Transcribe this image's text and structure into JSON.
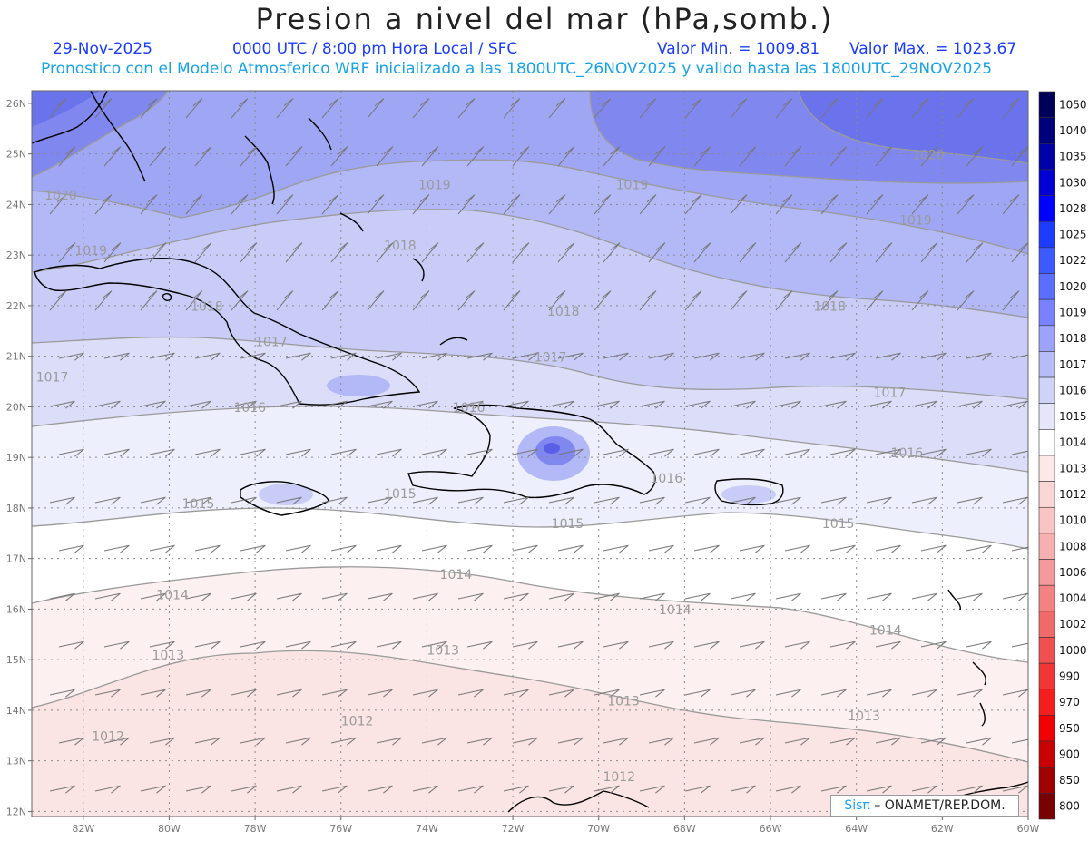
{
  "header": {
    "title": "Presion a nivel del mar (hPa,somb.)",
    "date": "29-Nov-2025",
    "time_info": "0000 UTC / 8:00 pm Hora Local / SFC",
    "min_label": "Valor Min. = 1009.81",
    "max_label": "Valor Max. = 1023.67",
    "forecast_info": "Pronostico con el Modelo Atmosferico WRF inicializado a las 1800UTC_26NOV2025 y valido hasta las  1800UTC_29NOV2025"
  },
  "map": {
    "lat_labels": [
      "26N",
      "25N",
      "24N",
      "23N",
      "22N",
      "21N",
      "20N",
      "19N",
      "18N",
      "17N",
      "16N",
      "15N",
      "14N",
      "13N",
      "12N"
    ],
    "lon_labels": [
      "82W",
      "80W",
      "78W",
      "76W",
      "74W",
      "72W",
      "70W",
      "68W",
      "66W",
      "64W",
      "62W",
      "60W"
    ],
    "isobar_labels": [
      {
        "text": "1020",
        "lon": -82.9,
        "lat": 24.1
      },
      {
        "text": "1020",
        "lon": -62.7,
        "lat": 24.9
      },
      {
        "text": "1019",
        "lon": -82.2,
        "lat": 23.0
      },
      {
        "text": "1019",
        "lon": -74.2,
        "lat": 24.3
      },
      {
        "text": "1019",
        "lon": -69.6,
        "lat": 24.3
      },
      {
        "text": "1019",
        "lon": -63.0,
        "lat": 23.6
      },
      {
        "text": "1018",
        "lon": -79.5,
        "lat": 21.9
      },
      {
        "text": "1018",
        "lon": -75.0,
        "lat": 23.1
      },
      {
        "text": "1018",
        "lon": -71.2,
        "lat": 21.8
      },
      {
        "text": "1018",
        "lon": -65.0,
        "lat": 21.9
      },
      {
        "text": "1017",
        "lon": -83.1,
        "lat": 20.5
      },
      {
        "text": "1017",
        "lon": -78.0,
        "lat": 21.2
      },
      {
        "text": "1017",
        "lon": -71.5,
        "lat": 20.9
      },
      {
        "text": "1017",
        "lon": -63.6,
        "lat": 20.2
      },
      {
        "text": "1016",
        "lon": -78.5,
        "lat": 19.9
      },
      {
        "text": "1016",
        "lon": -73.4,
        "lat": 19.9
      },
      {
        "text": "1016",
        "lon": -63.2,
        "lat": 19.0
      },
      {
        "text": "1016",
        "lon": -68.8,
        "lat": 18.5
      },
      {
        "text": "1015",
        "lon": -79.7,
        "lat": 18.0
      },
      {
        "text": "1015",
        "lon": -75.0,
        "lat": 18.2
      },
      {
        "text": "1015",
        "lon": -71.1,
        "lat": 17.6
      },
      {
        "text": "1015",
        "lon": -64.8,
        "lat": 17.6
      },
      {
        "text": "1014",
        "lon": -80.3,
        "lat": 16.2
      },
      {
        "text": "1014",
        "lon": -73.7,
        "lat": 16.6
      },
      {
        "text": "1014",
        "lon": -68.6,
        "lat": 15.9
      },
      {
        "text": "1014",
        "lon": -63.7,
        "lat": 15.5
      },
      {
        "text": "1013",
        "lon": -80.4,
        "lat": 15.0
      },
      {
        "text": "1013",
        "lon": -74.0,
        "lat": 15.1
      },
      {
        "text": "1013",
        "lon": -69.8,
        "lat": 14.1
      },
      {
        "text": "1013",
        "lon": -64.2,
        "lat": 13.8
      },
      {
        "text": "1012",
        "lon": -81.8,
        "lat": 13.4
      },
      {
        "text": "1012",
        "lon": -76.0,
        "lat": 13.7
      },
      {
        "text": "1012",
        "lon": -69.9,
        "lat": 12.6
      }
    ]
  },
  "legend": {
    "levels": [
      "1050",
      "1040",
      "1035",
      "1030",
      "1028",
      "1025",
      "1022",
      "1020",
      "1019",
      "1018",
      "1017",
      "1016",
      "1015",
      "1014",
      "1013",
      "1012",
      "1010",
      "1008",
      "1006",
      "1004",
      "1002",
      "1000",
      "990",
      "970",
      "950",
      "900",
      "850",
      "800"
    ],
    "colors": [
      "#00005a",
      "#00007a",
      "#0000a8",
      "#0000d2",
      "#0000ff",
      "#1e3cff",
      "#3c5aff",
      "#5a6eff",
      "#7882ff",
      "#9ba3fa",
      "#b7bcf8",
      "#d0d3f8",
      "#e5e6fa",
      "#ffffff",
      "#fde8e8",
      "#fbd6d6",
      "#f9c4c4",
      "#f7b0b0",
      "#f59a9a",
      "#f38282",
      "#f16a6a",
      "#f05050",
      "#f03636",
      "#f51e1e",
      "#f00000",
      "#c80000",
      "#a00000",
      "#780000"
    ]
  },
  "credit": {
    "logo": "Sisπ",
    "text": "– ONAMET/REP.DOM."
  }
}
